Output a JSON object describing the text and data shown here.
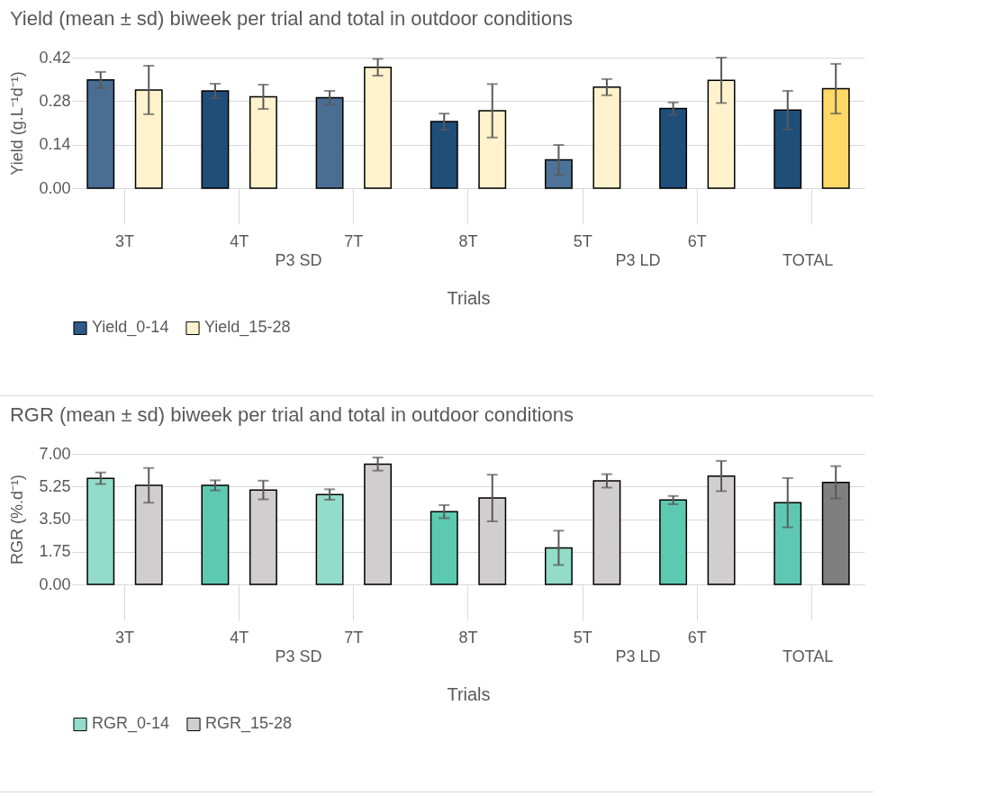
{
  "chart_data": [
    {
      "type": "bar",
      "title": "Yield (mean ± sd) biweek per trial and total in outdoor conditions",
      "xlabel": "Trials",
      "ylabel": "Yield (g.L⁻¹d⁻¹)",
      "categories": [
        "3T",
        "4T",
        "7T",
        "8T",
        "5T",
        "6T",
        null
      ],
      "annotations": [
        "P3 SD",
        "P3 LD",
        "TOTAL"
      ],
      "series": [
        {
          "name": "Yield_0-14",
          "color": "#2e5a88",
          "colors": [
            "#4a6d93",
            "#1f4e79",
            "#4a6d93",
            "#1f4e79",
            "#4e7399",
            "#1f4e79",
            "#1f4e79"
          ],
          "values": [
            0.348,
            0.313,
            0.291,
            0.214,
            0.091,
            0.256,
            0.251
          ],
          "errors": [
            0.026,
            0.023,
            0.022,
            0.026,
            0.048,
            0.02,
            0.062
          ]
        },
        {
          "name": "Yield_15-28",
          "color": "#fff2cc",
          "colors": [
            "#fff2cc",
            "#fff2cc",
            "#fff2cc",
            "#fff2cc",
            "#fff2cc",
            "#fff2cc",
            "#ffd966"
          ],
          "values": [
            0.316,
            0.294,
            0.389,
            0.249,
            0.325,
            0.347,
            0.32
          ],
          "errors": [
            0.078,
            0.039,
            0.027,
            0.086,
            0.026,
            0.073,
            0.08
          ]
        }
      ],
      "ylim": [
        0,
        0.42
      ],
      "yticks": [
        {
          "value": 0,
          "label": "0.00"
        },
        0.14,
        0.28,
        0.42
      ],
      "grid": "y",
      "legend": "bottom"
    },
    {
      "type": "bar",
      "title": "RGR (mean ± sd) biweek per trial and total in outdoor conditions",
      "xlabel": "Trials",
      "ylabel": "RGR (%.d⁻¹)",
      "categories": [
        "3T",
        "4T",
        "7T",
        "8T",
        "5T",
        "6T",
        null
      ],
      "annotations": [
        "P3 SD",
        "P3 LD",
        "TOTAL"
      ],
      "series": [
        {
          "name": "RGR_0-14",
          "color": "#93dcc9",
          "colors": [
            "#93dcc9",
            "#5ccab0",
            "#93dcc9",
            "#5ccab0",
            "#93dcc9",
            "#5ccab0",
            "#5fc8b2"
          ],
          "values": [
            5.69,
            5.31,
            4.82,
            3.9,
            1.96,
            4.52,
            4.38
          ],
          "errors": [
            0.31,
            0.27,
            0.28,
            0.35,
            0.92,
            0.22,
            1.32
          ]
        },
        {
          "name": "RGR_15-28",
          "color": "#d0cece",
          "colors": [
            "#d0cece",
            "#d0cece",
            "#d0cece",
            "#d0cece",
            "#d0cece",
            "#d0cece",
            "#7f7f7f"
          ],
          "values": [
            5.31,
            5.06,
            6.45,
            4.63,
            5.55,
            5.81,
            5.47
          ],
          "errors": [
            0.93,
            0.5,
            0.35,
            1.25,
            0.36,
            0.81,
            0.87
          ]
        }
      ],
      "ylim": [
        0,
        7
      ],
      "yticks": [
        {
          "value": 0,
          "label": "0.00"
        },
        {
          "value": 1.75,
          "label": "1.75"
        },
        {
          "value": 3.5,
          "label": "3.50"
        },
        {
          "value": 5.25,
          "label": "5.25"
        },
        {
          "value": 7,
          "label": "7.00"
        }
      ],
      "grid": "y",
      "legend": "bottom"
    }
  ]
}
